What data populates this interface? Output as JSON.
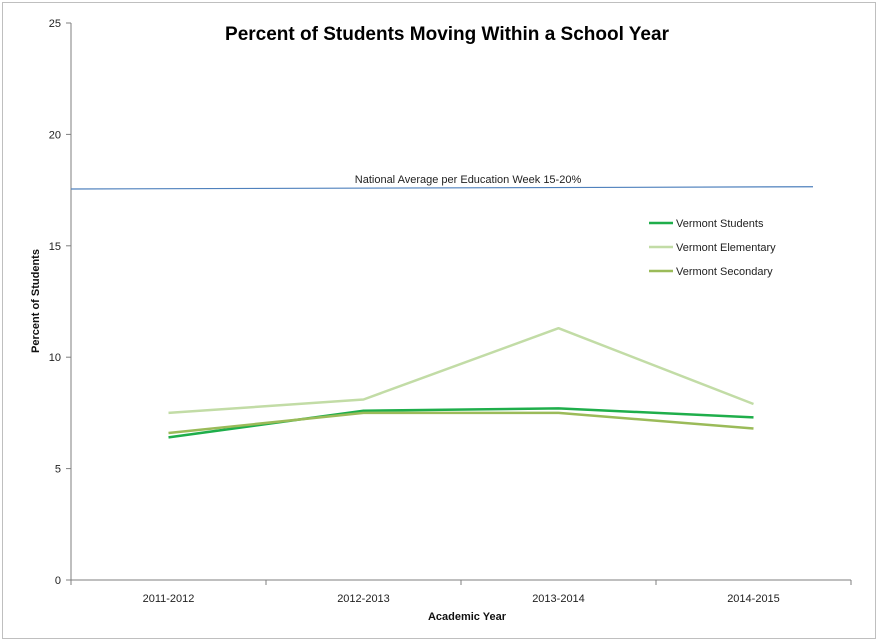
{
  "chart_data": {
    "type": "line",
    "title": "Percent of Students Moving Within a School Year",
    "xlabel": "Academic Year",
    "ylabel": "Percent of Students",
    "categories": [
      "2011-2012",
      "2012-2013",
      "2013-2014",
      "2014-2015"
    ],
    "ylim": [
      0,
      25
    ],
    "yticks": [
      0,
      5,
      10,
      15,
      20,
      25
    ],
    "grid": false,
    "legend_position": "right",
    "series": [
      {
        "name": "Vermont Students",
        "values": [
          6.4,
          7.6,
          7.7,
          7.3
        ],
        "color": "#1fae4b"
      },
      {
        "name": "Vermont Elementary",
        "values": [
          7.5,
          8.1,
          11.3,
          7.9
        ],
        "color": "#c2dca6"
      },
      {
        "name": "Vermont Secondary",
        "values": [
          6.6,
          7.5,
          7.5,
          6.8
        ],
        "color": "#9bbb59"
      }
    ],
    "reference_line": {
      "label": "National Average per Education Week 15-20%",
      "y_start": 17.55,
      "y_end": 17.65,
      "color": "#4f81bd"
    }
  }
}
